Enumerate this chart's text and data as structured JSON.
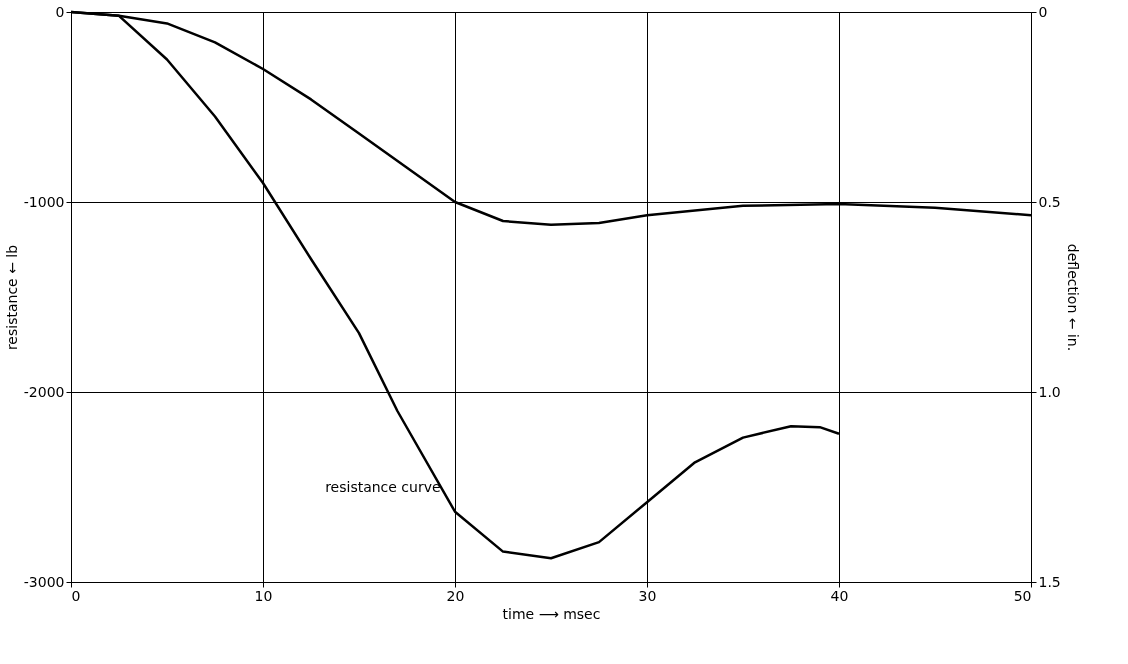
{
  "chart_data": {
    "type": "line",
    "xlabel": "time ⟶ msec",
    "ylabel": "resistance ← lb",
    "y2label": "deflection ← in.",
    "xlim": [
      0,
      50
    ],
    "xticks": [
      0,
      10,
      20,
      30,
      40,
      50
    ],
    "ylim": [
      -3000,
      0
    ],
    "yticks": [
      -3000,
      -2000,
      -1000,
      0
    ],
    "y2lim": [
      1.5,
      0
    ],
    "y2ticks": [
      0,
      0.5,
      {
        "value": 1,
        "label": "1.0"
      },
      1.5
    ],
    "grid": true,
    "marker": "none",
    "line_style": "solid",
    "annotations": [
      "resistance curve"
    ],
    "series": [
      {
        "color": "#000000",
        "x": [
          0,
          2.5,
          5,
          7.5,
          10,
          12.5,
          15,
          17,
          20,
          22.5,
          25,
          27.5,
          30,
          32.5,
          35,
          37.5,
          39,
          40
        ],
        "values": [
          0,
          -20,
          -250,
          -550,
          -900,
          -1300,
          -1690,
          -2100,
          -2630,
          -2840,
          -2875,
          -2790,
          -2580,
          -2370,
          -2240,
          -2180,
          -2185,
          -2220
        ]
      },
      {
        "color": "#000000",
        "axis": "y2",
        "x": [
          0,
          2.5,
          5,
          7.5,
          10,
          12.5,
          15,
          17.5,
          20,
          22.5,
          25,
          27.5,
          30,
          35,
          40,
          45,
          50
        ],
        "values": [
          0,
          0.01,
          0.03,
          0.08,
          0.15,
          0.23,
          0.32,
          0.41,
          0.5,
          0.55,
          0.56,
          0.555,
          0.535,
          0.51,
          0.505,
          0.515,
          0.535
        ]
      }
    ]
  }
}
